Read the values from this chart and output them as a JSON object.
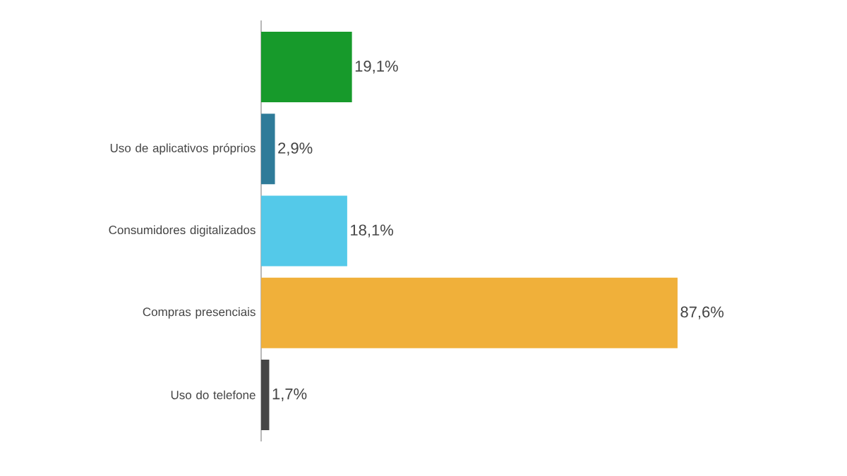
{
  "chart_data": {
    "type": "bar",
    "orientation": "horizontal",
    "categories": [
      null,
      "Uso de aplicativos próprios",
      "Consumidores digitalizados",
      "Compras presenciais",
      "Uso do telefone"
    ],
    "values": [
      19.1,
      2.9,
      18.1,
      87.6,
      1.7
    ],
    "value_labels": [
      "19,1%",
      "2,9%",
      "18,1%",
      "87,6%",
      "1,7%"
    ],
    "colors": [
      "#179a2b",
      "#2f7b99",
      "#54c9e9",
      "#f0b03a",
      "#464646"
    ]
  }
}
